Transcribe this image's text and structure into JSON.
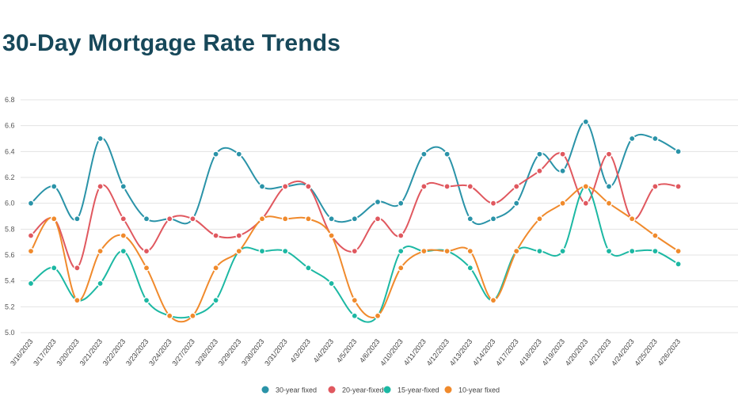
{
  "chart_data": {
    "type": "line",
    "title": "30-Day Mortgage Rate Trends",
    "xlabel": "",
    "ylabel": "",
    "ylim": [
      5.0,
      6.8
    ],
    "yticks": [
      "5.0",
      "5.2",
      "5.4",
      "5.6",
      "5.8",
      "6.0",
      "6.2",
      "6.4",
      "6.6",
      "6.8"
    ],
    "grid": true,
    "legend_position": "bottom-center",
    "categories": [
      "3/16/2023",
      "3/17/2023",
      "3/20/2023",
      "3/21/2023",
      "3/22/2023",
      "3/23/2023",
      "3/24/2023",
      "3/27/2023",
      "3/28/2023",
      "3/29/2023",
      "3/30/2023",
      "3/31/2023",
      "4/3/2023",
      "4/4/2023",
      "4/5/2023",
      "4/6/2023",
      "4/10/2023",
      "4/11/2023",
      "4/12/2023",
      "4/13/2023",
      "4/14/2023",
      "4/17/2023",
      "4/18/2023",
      "4/19/2023",
      "4/20/2023",
      "4/21/2023",
      "4/24/2023",
      "4/25/2023",
      "4/26/2023"
    ],
    "series": [
      {
        "name": "30-year fixed",
        "color": "#2a93a8",
        "values": [
          6.0,
          6.13,
          5.88,
          6.5,
          6.13,
          5.88,
          5.88,
          5.88,
          6.38,
          6.38,
          6.13,
          6.13,
          6.13,
          5.88,
          5.88,
          6.01,
          6.0,
          6.38,
          6.38,
          5.88,
          5.88,
          6.0,
          6.38,
          6.25,
          6.63,
          6.13,
          6.5,
          6.5,
          6.4
        ]
      },
      {
        "name": "20-year-fixed",
        "color": "#e0585f",
        "values": [
          5.75,
          5.88,
          5.5,
          6.13,
          5.88,
          5.63,
          5.88,
          5.88,
          5.75,
          5.75,
          5.88,
          6.13,
          6.13,
          5.75,
          5.63,
          5.88,
          5.75,
          6.13,
          6.13,
          6.13,
          6.0,
          6.13,
          6.25,
          6.38,
          6.0,
          6.38,
          5.88,
          6.13,
          6.13
        ]
      },
      {
        "name": "15-year-fixed",
        "color": "#1cb8a3",
        "values": [
          5.38,
          5.5,
          5.25,
          5.38,
          5.63,
          5.25,
          5.13,
          5.13,
          5.25,
          5.63,
          5.63,
          5.63,
          5.5,
          5.38,
          5.13,
          5.13,
          5.63,
          5.63,
          5.63,
          5.5,
          5.25,
          5.63,
          5.63,
          5.63,
          6.13,
          5.63,
          5.63,
          5.63,
          5.53
        ]
      },
      {
        "name": "10-year fixed",
        "color": "#f08a2c",
        "values": [
          5.63,
          5.88,
          5.25,
          5.63,
          5.75,
          5.5,
          5.13,
          5.13,
          5.5,
          5.63,
          5.88,
          5.88,
          5.88,
          5.75,
          5.25,
          5.13,
          5.5,
          5.63,
          5.63,
          5.63,
          5.25,
          5.63,
          5.88,
          6.0,
          6.13,
          6.0,
          5.88,
          5.75,
          5.63
        ]
      }
    ]
  }
}
